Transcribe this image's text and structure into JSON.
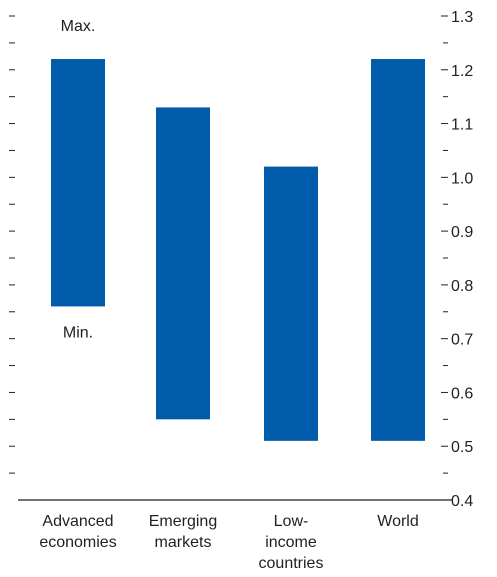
{
  "chart_data": {
    "type": "bar",
    "subtype": "floating-range",
    "categories": [
      [
        "Advanced",
        "economies"
      ],
      [
        "Emerging",
        "markets"
      ],
      [
        "Low-",
        "income",
        "countries"
      ],
      [
        "World"
      ]
    ],
    "series": [
      {
        "min": [
          0.76,
          0.55,
          0.51,
          0.51
        ],
        "max": [
          1.22,
          1.13,
          1.02,
          1.22
        ]
      }
    ],
    "ylim": [
      0.4,
      1.3
    ],
    "y_ticks": [
      "0.4",
      "0.5",
      "0.6",
      "0.7",
      "0.8",
      "0.9",
      "1.0",
      "1.1",
      "1.2",
      "1.3"
    ],
    "y_axis_side": "right",
    "annotations": {
      "max_label": "Max.",
      "min_label": "Min."
    },
    "bar_color": "#005baa",
    "grid": false,
    "legend": "none"
  }
}
